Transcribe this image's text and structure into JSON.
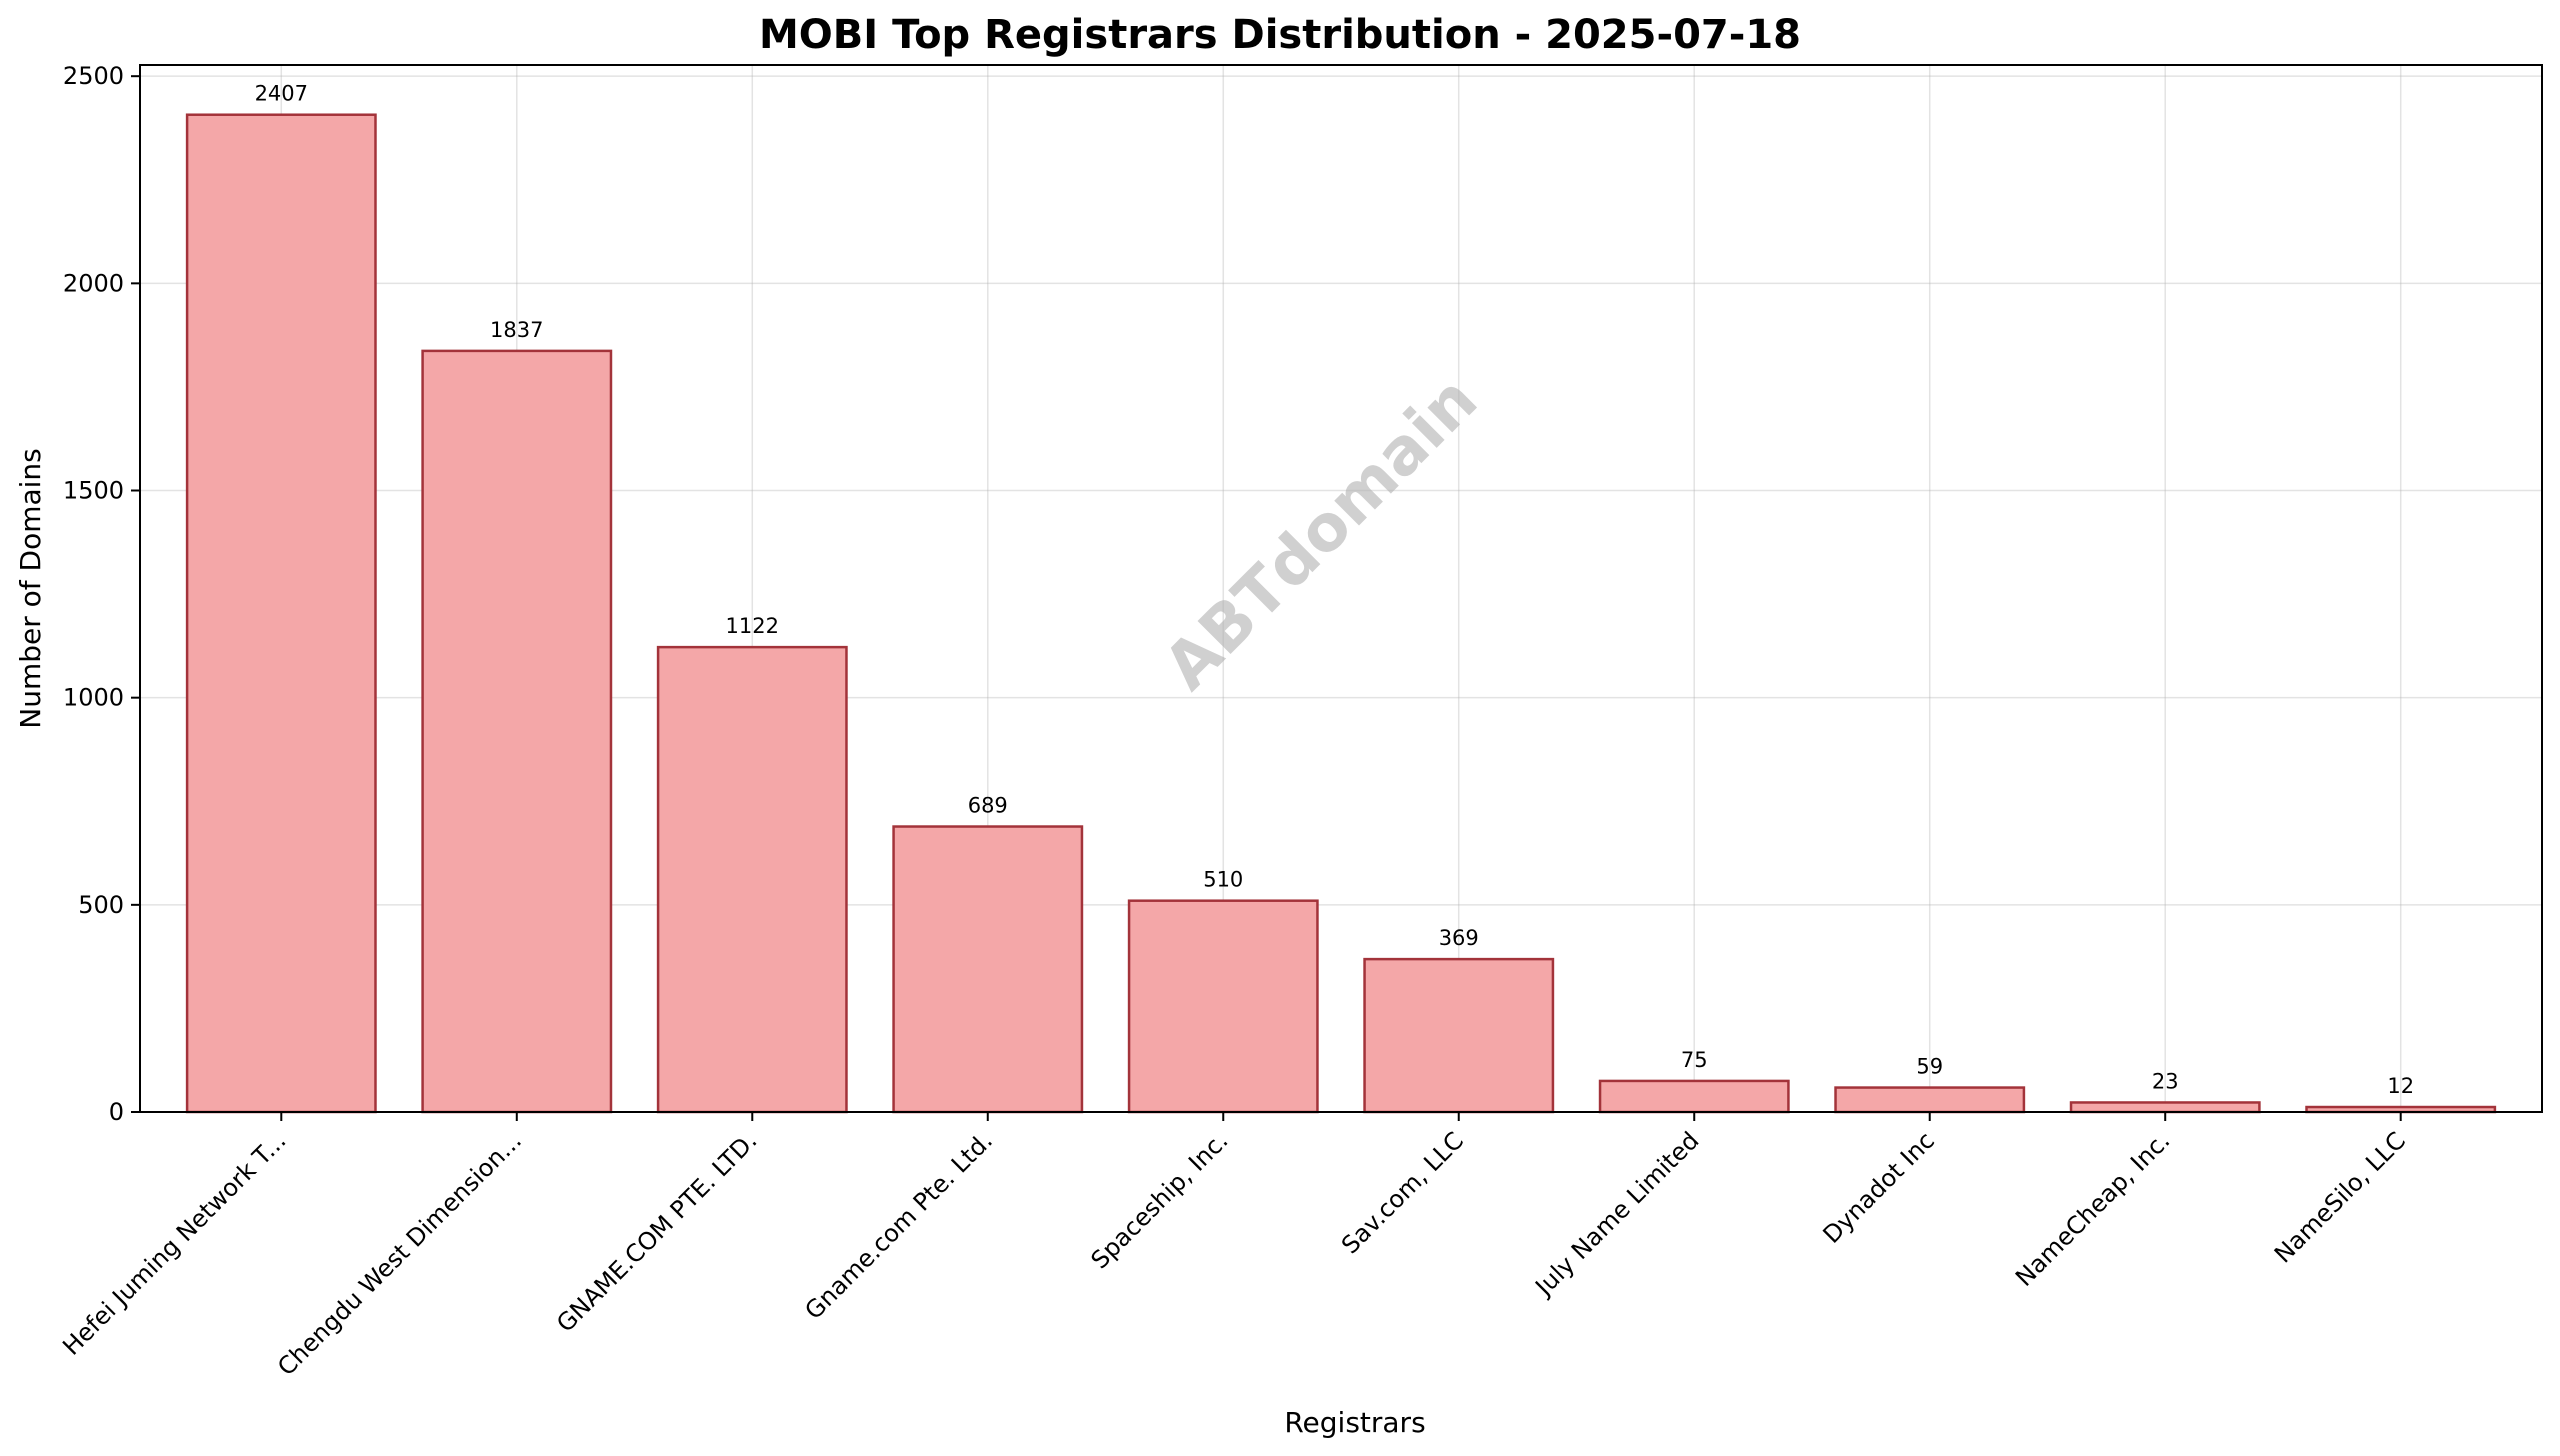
{
  "chart_data": {
    "type": "bar",
    "title": "MOBI Top Registrars Distribution - 2025-07-18",
    "xlabel": "Registrars",
    "ylabel": "Number of Domains",
    "categories": [
      "Hefei Juming Network T...",
      "Chengdu West Dimension...",
      "GNAME.COM PTE. LTD.",
      "Gname.com Pte. Ltd.",
      "Spaceship, Inc.",
      "Sav.com, LLC",
      "July Name Limited",
      "Dynadot Inc",
      "NameCheap, Inc.",
      "NameSilo, LLC"
    ],
    "values": [
      2407,
      1837,
      1122,
      689,
      510,
      369,
      75,
      59,
      23,
      12
    ],
    "data_labels": [
      "2407",
      "1837",
      "1122",
      "689",
      "510",
      "369",
      "75",
      "59",
      "23",
      "12"
    ],
    "ylim": [
      0,
      2527
    ],
    "yticks": [
      0,
      500,
      1000,
      1500,
      2000,
      2500
    ],
    "grid": true,
    "legend": "none",
    "bar_color": "#f4a7a8",
    "bar_edge_color": "#a3333a",
    "watermark": "ABTdomain"
  }
}
